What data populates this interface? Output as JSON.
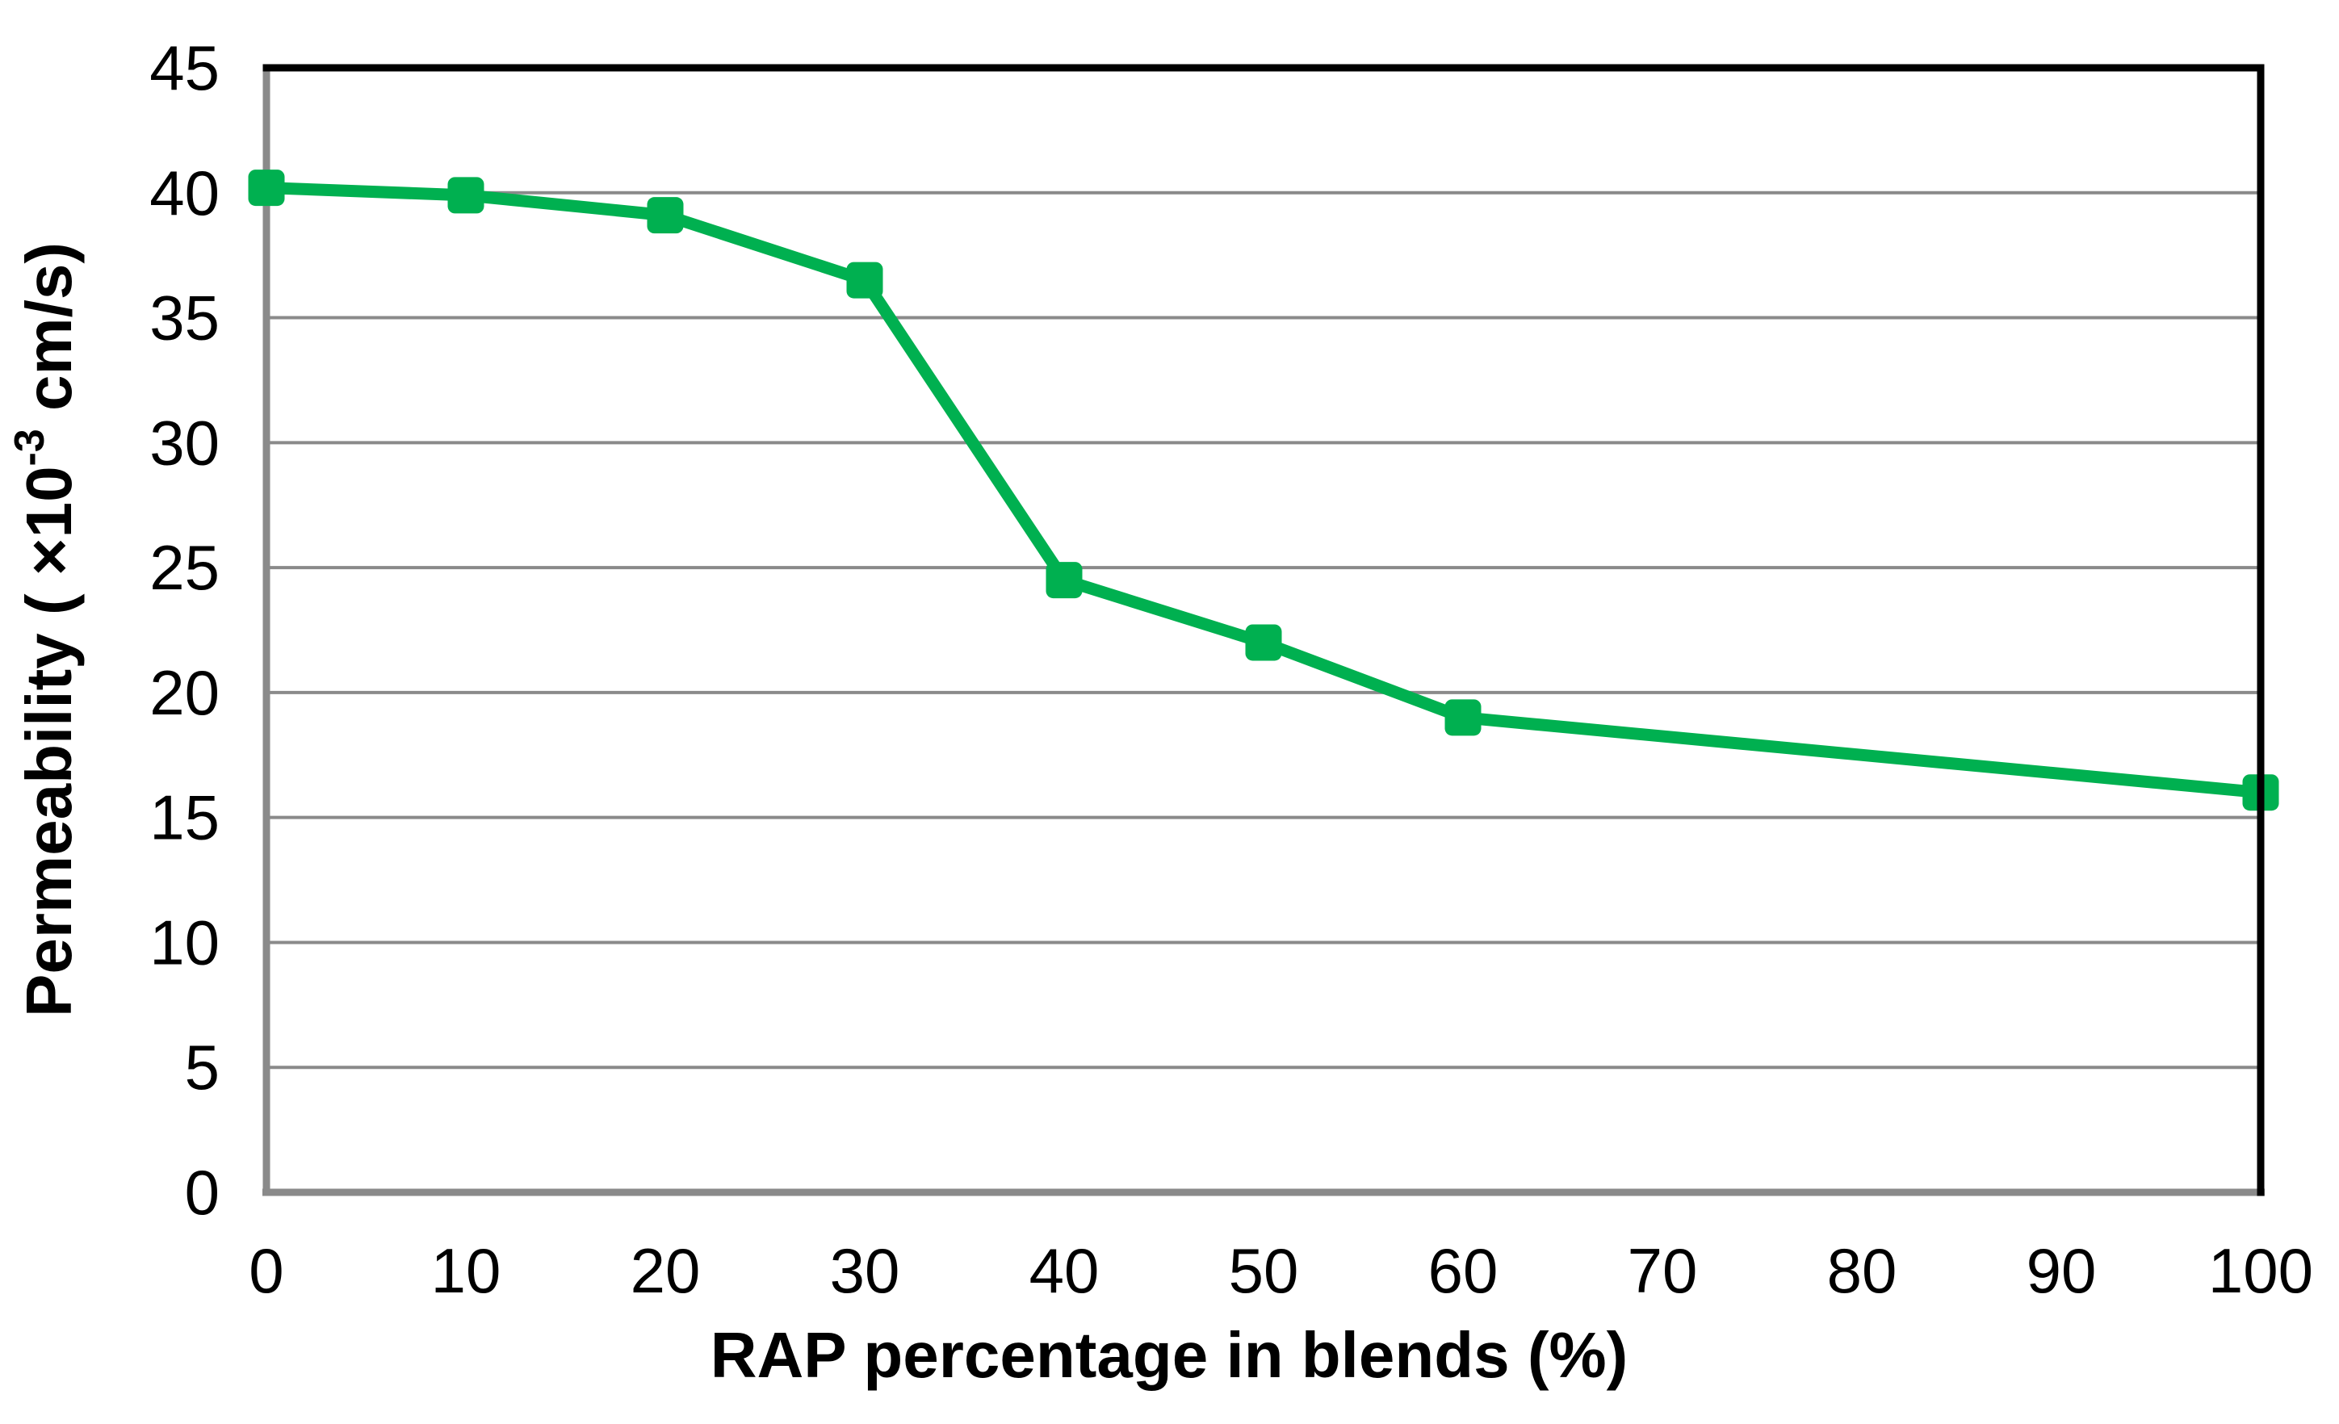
{
  "page": {
    "background_color": "#ffffff"
  },
  "chart_data": {
    "type": "line",
    "title": "",
    "x": [
      0,
      10,
      20,
      30,
      40,
      50,
      60,
      100
    ],
    "series": [
      {
        "name": "Permeability",
        "values": [
          40.2,
          39.9,
          39.1,
          36.5,
          24.5,
          22,
          19,
          16
        ],
        "color": "#00B050",
        "marker": "square"
      }
    ],
    "xlabel": "RAP percentage in blends (%)",
    "ylabel": "Permeability ( ×10⁻³ cm/s)",
    "ylabel_parts": {
      "prefix": "Permeability ( ×10",
      "superscript": "-3",
      "suffix": " cm/s)"
    },
    "xlim": [
      0,
      100
    ],
    "ylim": [
      0,
      45
    ],
    "xticks": [
      0,
      10,
      20,
      30,
      40,
      50,
      60,
      70,
      80,
      90,
      100
    ],
    "yticks": [
      0,
      5,
      10,
      15,
      20,
      25,
      30,
      35,
      40,
      45
    ],
    "grid": "horizontal",
    "legend": "none",
    "colors": {
      "line": "#00B050",
      "gridline": "#8a8a8a",
      "axis_gray": "#8a8a8a",
      "border_black": "#000000",
      "text": "#000000"
    }
  }
}
